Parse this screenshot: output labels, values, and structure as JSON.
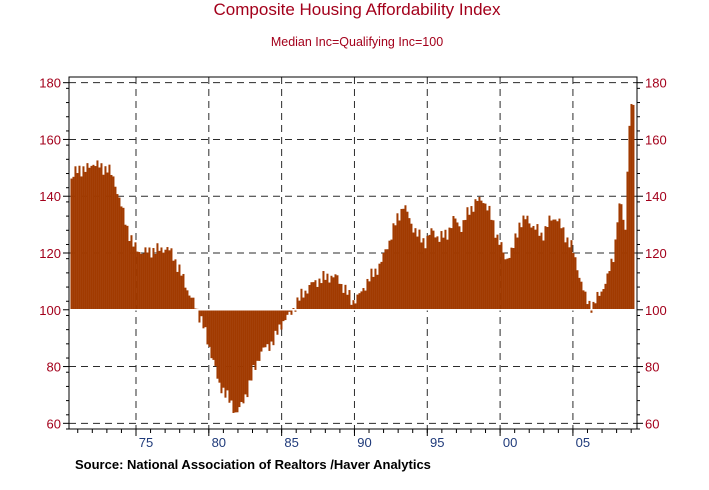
{
  "chart_data": {
    "type": "bar",
    "title": "Composite Housing Affordability Index",
    "subtitle": "Median Inc=Qualifying Inc=100",
    "source": "Source:  National Association of Realtors /Haver Analytics",
    "baseline": 100,
    "ylim": [
      58,
      182
    ],
    "xlim": [
      1970.4,
      2009.4
    ],
    "yticks": [
      60,
      80,
      100,
      120,
      140,
      160,
      180
    ],
    "ytick_labels": [
      "60",
      "80",
      "100",
      "120",
      "140",
      "160",
      "180"
    ],
    "xtick_values": [
      1975,
      1980,
      1985,
      1990,
      1995,
      2000,
      2005
    ],
    "xtick_labels": [
      "75",
      "80",
      "85",
      "90",
      "95",
      "00",
      "05"
    ],
    "grid": true,
    "colors": {
      "bar": "#a13a00",
      "text": "#a3001b",
      "axis_label": "#1f3a7a",
      "grid": "#2b2b2b"
    },
    "series": [
      {
        "name": "Composite Housing Affordability Index",
        "x": [
          1970.5,
          1971.0,
          1971.5,
          1972.0,
          1972.5,
          1973.0,
          1973.5,
          1974.0,
          1974.4,
          1974.8,
          1975.5,
          1976.0,
          1976.5,
          1977.0,
          1977.5,
          1978.0,
          1978.5,
          1979.0,
          1979.5,
          1979.8,
          1980.3,
          1980.6,
          1981.0,
          1981.4,
          1981.8,
          1982.2,
          1982.6,
          1983.0,
          1983.5,
          1984.0,
          1984.5,
          1985.0,
          1985.5,
          1985.8,
          1986.3,
          1986.8,
          1987.3,
          1987.8,
          1988.3,
          1988.8,
          1989.3,
          1989.8,
          1990.3,
          1990.8,
          1991.3,
          1991.8,
          1992.3,
          1992.8,
          1993.3,
          1993.8,
          1994.3,
          1994.8,
          1995.3,
          1995.8,
          1996.3,
          1996.8,
          1997.3,
          1997.8,
          1998.3,
          1998.8,
          1999.3,
          1999.8,
          2000.3,
          2000.8,
          2001.3,
          2001.8,
          2002.3,
          2002.8,
          2003.3,
          2003.8,
          2004.3,
          2004.8,
          2005.3,
          2005.8,
          2006.3,
          2006.8,
          2007.3,
          2007.8,
          2008.0,
          2008.3,
          2008.5,
          2008.7,
          2008.9,
          2009.1
        ],
        "values": [
          146,
          150,
          149,
          152,
          150,
          150,
          145,
          135,
          128,
          122,
          120,
          121,
          121,
          122,
          119,
          113,
          107,
          101,
          96,
          89,
          82,
          73,
          72,
          67,
          64,
          66,
          72,
          78,
          85,
          87,
          90,
          96,
          98,
          101,
          105,
          108,
          110,
          111,
          112,
          111,
          107,
          103,
          105,
          110,
          113,
          117,
          124,
          131,
          137,
          131,
          126,
          124,
          128,
          125,
          127,
          132,
          129,
          135,
          138,
          139,
          133,
          125,
          118,
          121,
          131,
          132,
          129,
          126,
          131,
          133,
          127,
          123,
          114,
          104,
          101,
          106,
          111,
          121,
          133,
          138,
          124,
          153,
          173,
          170
        ]
      }
    ]
  }
}
